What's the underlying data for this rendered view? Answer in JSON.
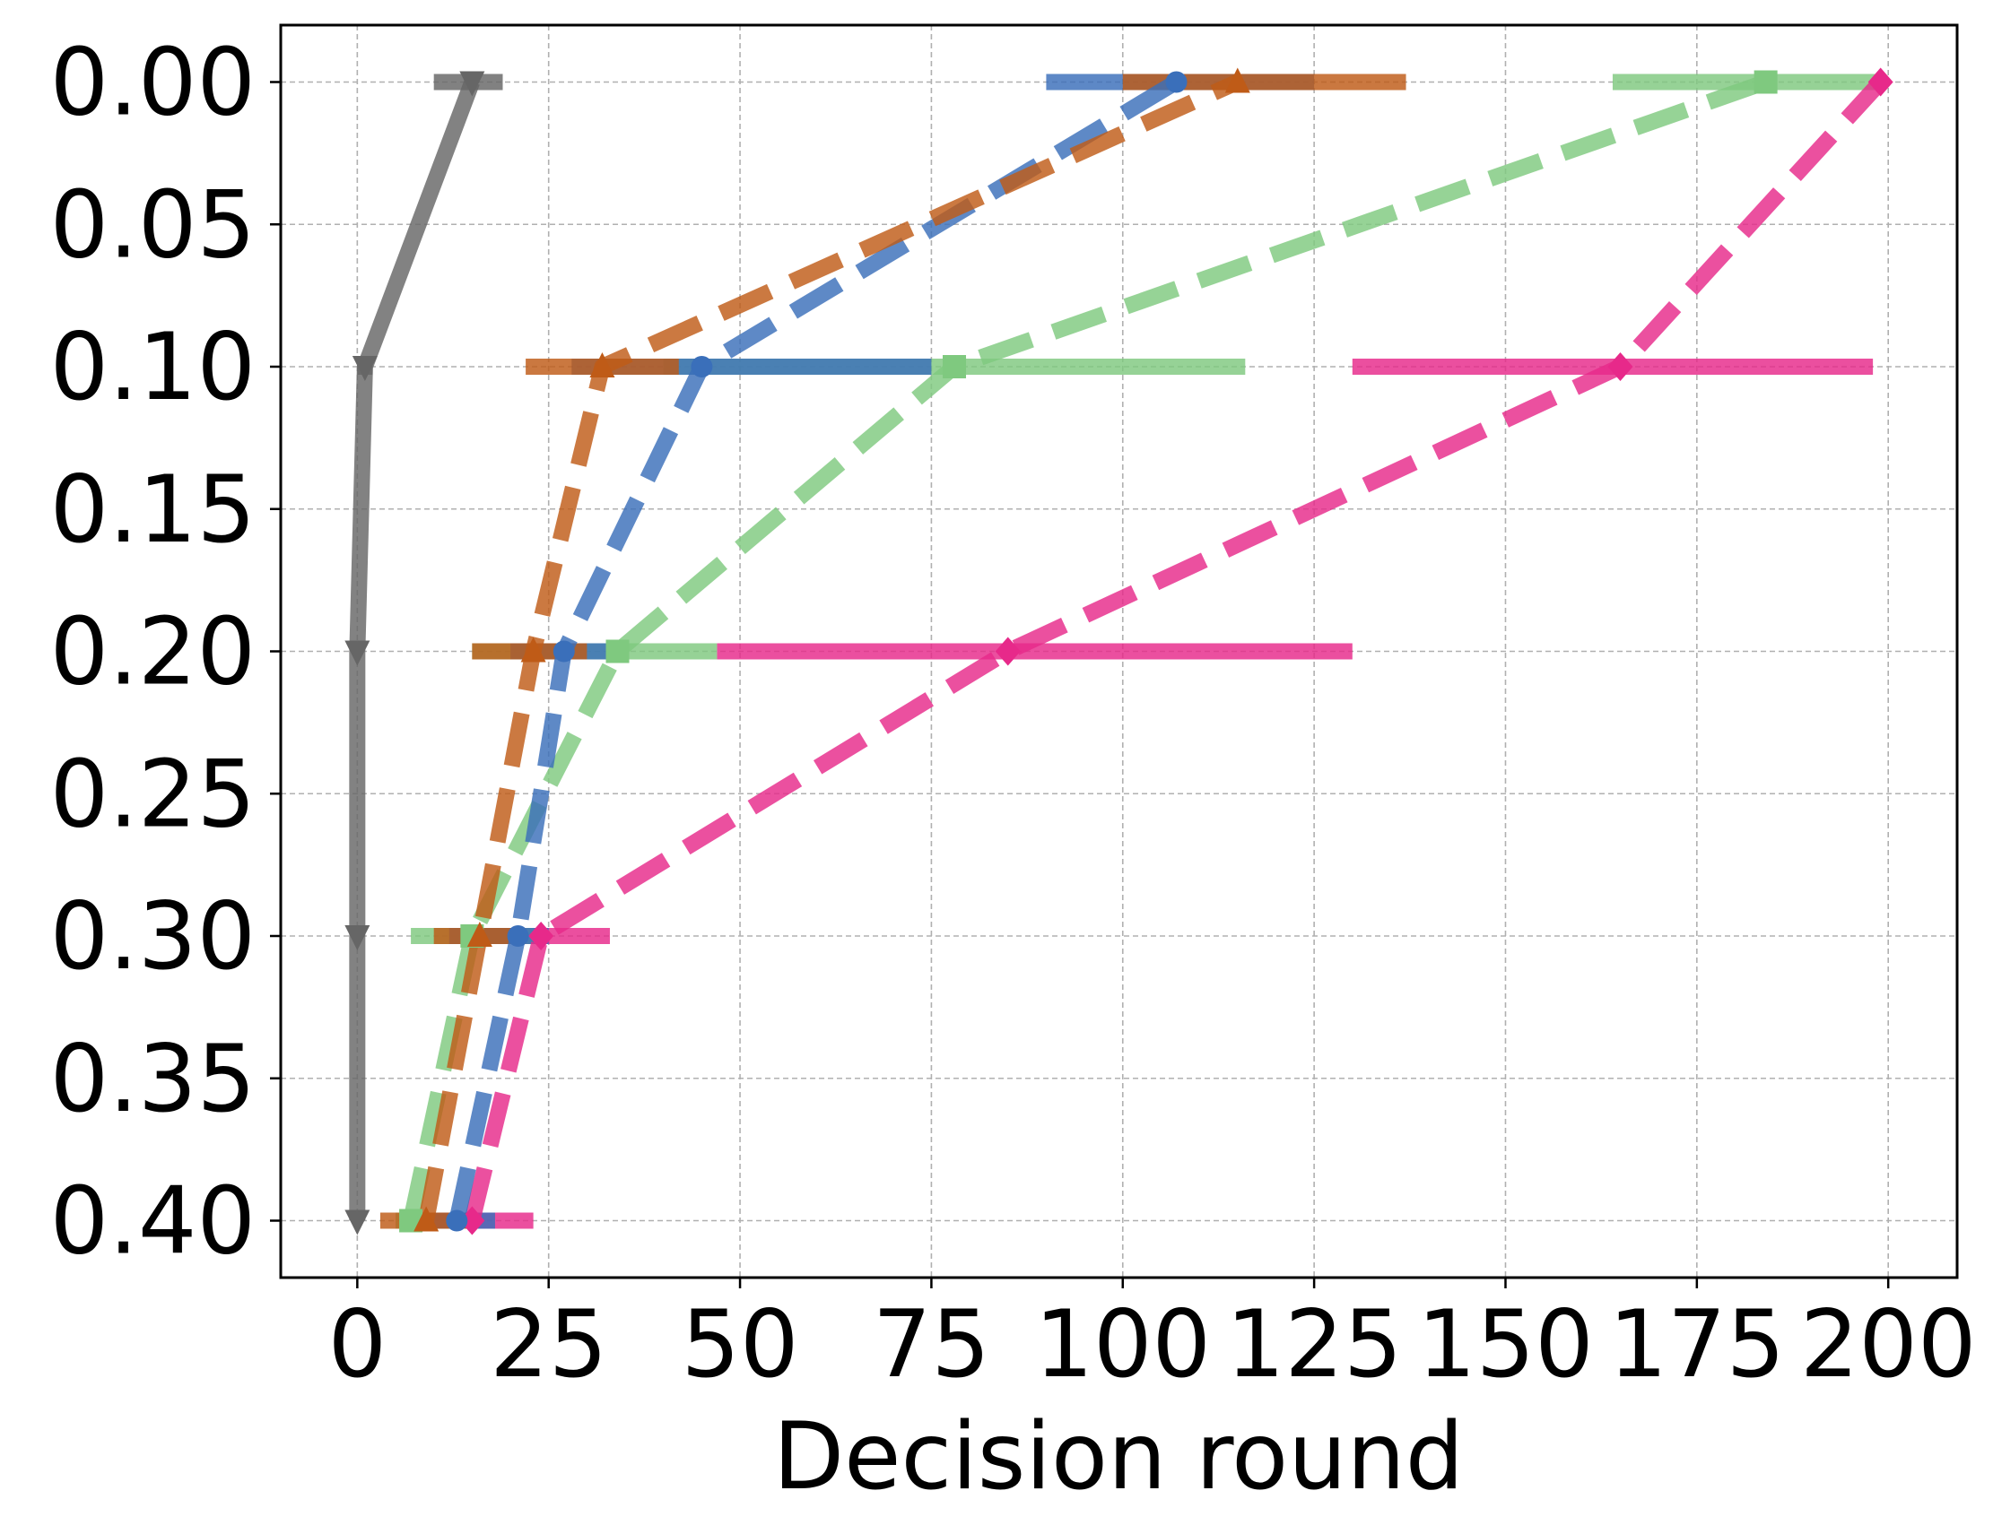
{
  "chart_data": {
    "type": "line",
    "title": "",
    "xlabel": "Decision round",
    "ylabel": "",
    "xlim": [
      -10,
      209
    ],
    "ylim": [
      0.42,
      -0.02
    ],
    "y_inverted": true,
    "grid": true,
    "legend": "none",
    "x_ticks": [
      0,
      25,
      50,
      75,
      100,
      125,
      150,
      175,
      200
    ],
    "x_tick_labels": [
      "0",
      "25",
      "50",
      "75",
      "100",
      "125",
      "150",
      "175",
      "200"
    ],
    "y_ticks": [
      0.0,
      0.05,
      0.1,
      0.15,
      0.2,
      0.25,
      0.3,
      0.35,
      0.4
    ],
    "y_tick_labels": [
      "0.00",
      "0.05",
      "0.10",
      "0.15",
      "0.20",
      "0.25",
      "0.30",
      "0.35",
      "0.40"
    ],
    "series": [
      {
        "color": "#e7298a",
        "marker": "diamond",
        "style": "dashed",
        "points": [
          {
            "y": 0.4,
            "x": 15,
            "xmin": 10,
            "xmax": 23
          },
          {
            "y": 0.3,
            "x": 24,
            "xmin": 15,
            "xmax": 33
          },
          {
            "y": 0.2,
            "x": 85,
            "xmin": 47,
            "xmax": 130
          },
          {
            "y": 0.1,
            "x": 165,
            "xmin": 130,
            "xmax": 198
          },
          {
            "y": 0.0,
            "x": 199,
            "xmin": 199,
            "xmax": 199
          }
        ]
      },
      {
        "color": "#7fc97f",
        "marker": "square",
        "style": "dashed",
        "points": [
          {
            "y": 0.4,
            "x": 7,
            "xmin": 5,
            "xmax": 10
          },
          {
            "y": 0.3,
            "x": 15,
            "xmin": 7,
            "xmax": 23
          },
          {
            "y": 0.2,
            "x": 34,
            "xmin": 15,
            "xmax": 47
          },
          {
            "y": 0.1,
            "x": 78,
            "xmin": 40,
            "xmax": 116
          },
          {
            "y": 0.0,
            "x": 184,
            "xmin": 164,
            "xmax": 199
          }
        ]
      },
      {
        "color": "#3a6fba",
        "marker": "circle",
        "style": "dashed",
        "points": [
          {
            "y": 0.4,
            "x": 13,
            "xmin": 8,
            "xmax": 18
          },
          {
            "y": 0.3,
            "x": 21,
            "xmin": 12,
            "xmax": 25
          },
          {
            "y": 0.2,
            "x": 27,
            "xmin": 20,
            "xmax": 33
          },
          {
            "y": 0.1,
            "x": 45,
            "xmin": 28,
            "xmax": 75
          },
          {
            "y": 0.0,
            "x": 107,
            "xmin": 90,
            "xmax": 125
          }
        ]
      },
      {
        "color": "#bf5b17",
        "marker": "triangle-up",
        "style": "dashed",
        "points": [
          {
            "y": 0.4,
            "x": 9,
            "xmin": 3,
            "xmax": 15
          },
          {
            "y": 0.3,
            "x": 16,
            "xmin": 10,
            "xmax": 22
          },
          {
            "y": 0.2,
            "x": 23,
            "xmin": 15,
            "xmax": 30
          },
          {
            "y": 0.1,
            "x": 32,
            "xmin": 22,
            "xmax": 42
          },
          {
            "y": 0.0,
            "x": 115,
            "xmin": 100,
            "xmax": 137
          }
        ]
      },
      {
        "color": "#666666",
        "marker": "triangle-down",
        "style": "solid",
        "points": [
          {
            "y": 0.4,
            "x": 0,
            "xmin": 0,
            "xmax": 0
          },
          {
            "y": 0.3,
            "x": 0,
            "xmin": 0,
            "xmax": 0
          },
          {
            "y": 0.2,
            "x": 0,
            "xmin": 0,
            "xmax": 0
          },
          {
            "y": 0.1,
            "x": 1,
            "xmin": 0,
            "xmax": 2
          },
          {
            "y": 0.0,
            "x": 15,
            "xmin": 10,
            "xmax": 19
          }
        ]
      }
    ]
  }
}
